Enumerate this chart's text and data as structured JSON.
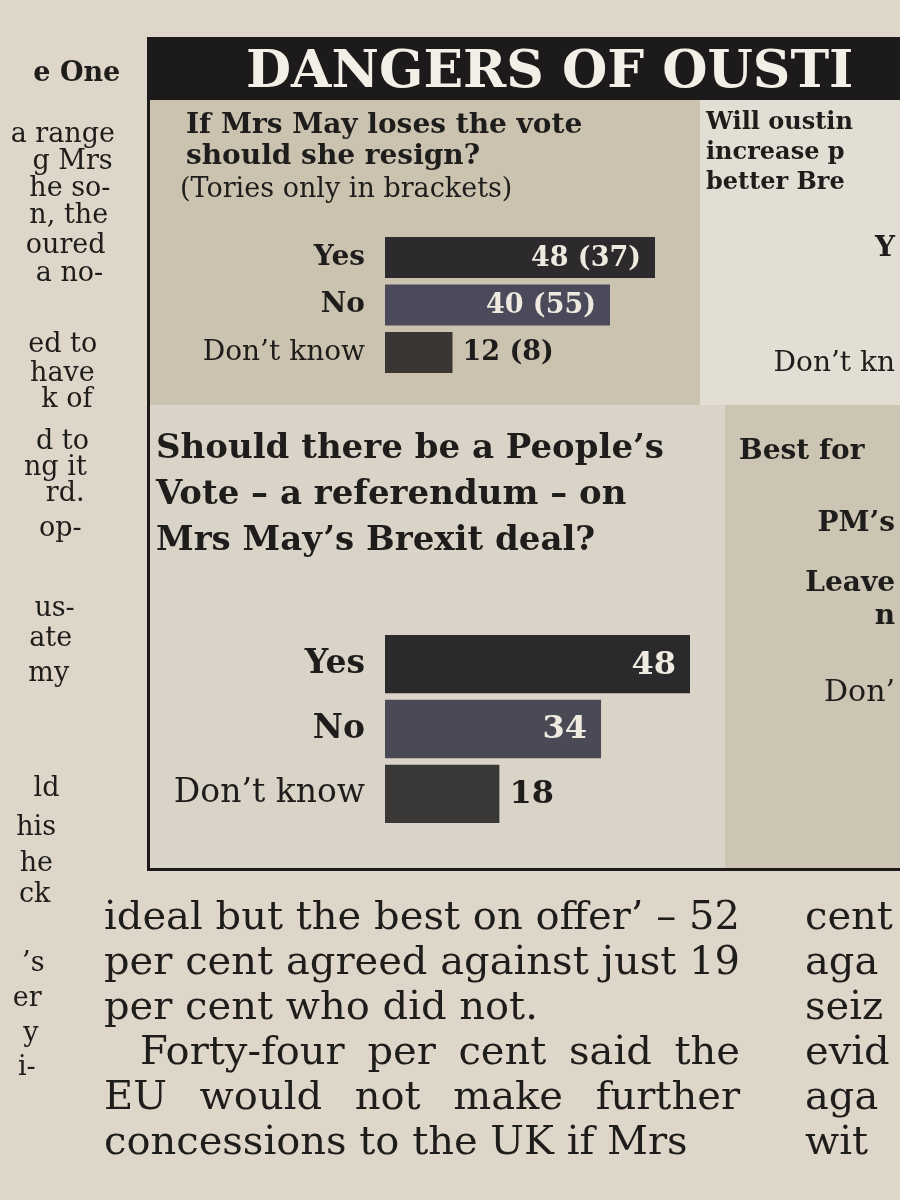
{
  "chart_data": [
    {
      "type": "other",
      "annotations": [
        "e One",
        "a range",
        "g Mrs",
        "he so-",
        "n, the",
        "oured",
        "a no-",
        "ed to",
        "have",
        "k of",
        "d to",
        "ng it",
        "rd.",
        "op-",
        "us-",
        "ate",
        "my",
        "ld",
        "his",
        "he",
        "ck",
        "’s",
        "er",
        "y",
        "i-"
      ]
    },
    {
      "type": "other",
      "title": "DANGERS OF OUSTI"
    },
    {
      "type": "bar",
      "orientation": "horizontal",
      "title": "If Mrs May loses the vote should she resign?",
      "subtitle": "(Tories only in brackets)",
      "categories": [
        "Yes",
        "No",
        "Don’t know"
      ],
      "values": [
        48,
        40,
        12
      ],
      "value_labels": [
        "48 (37)",
        "40 (55)",
        "12 (8)"
      ],
      "colors": [
        "#2c2a2d",
        "#4b4a5a",
        "#393634"
      ]
    },
    {
      "type": "bar",
      "orientation": "horizontal",
      "title": "Should there be a People’s Vote – a referendum – on Mrs May’s Brexit deal?",
      "categories": [
        "Yes",
        "No",
        "Don’t know"
      ],
      "values": [
        48,
        34,
        18
      ],
      "data_labels": true,
      "colors": [
        "#2a292b",
        "#4a4a56",
        "#3a3937"
      ]
    },
    {
      "type": "other",
      "title": "Will oustin increase p better Bre",
      "annotations": [
        "Y",
        "Don’t kn"
      ]
    },
    {
      "type": "other",
      "title": "Best for",
      "annotations": [
        "PM’s",
        "Leave n",
        "Don’"
      ]
    },
    {
      "type": "other",
      "annotations": [
        "ideal but the best on offer’ – 52 per cent agreed against just 19 per cent who did not.",
        "Forty-four per cent said the EU would not make further concessions to the UK if Mrs"
      ]
    },
    {
      "type": "other",
      "annotations": [
        "cent",
        "aga",
        "seiz",
        "evid",
        "aga",
        "wit"
      ]
    }
  ]
}
